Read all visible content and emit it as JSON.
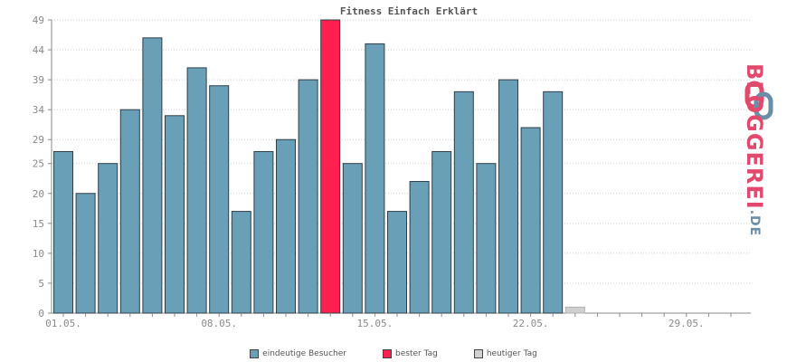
{
  "chart_data": {
    "type": "bar",
    "title": "Fitness Einfach Erklärt",
    "categories": [
      "01.05.",
      "02.05.",
      "03.05.",
      "04.05.",
      "05.05.",
      "06.05.",
      "07.05.",
      "08.05.",
      "09.05.",
      "10.05.",
      "11.05.",
      "12.05.",
      "13.05.",
      "14.05.",
      "15.05.",
      "16.05.",
      "17.05.",
      "18.05.",
      "19.05.",
      "20.05.",
      "21.05.",
      "22.05.",
      "23.05."
    ],
    "values": [
      27,
      20,
      25,
      34,
      46,
      33,
      41,
      38,
      17,
      27,
      29,
      39,
      49,
      25,
      45,
      17,
      22,
      27,
      37,
      25,
      39,
      31,
      37
    ],
    "today_value": 1,
    "best_index": 12,
    "x_tick_labels": [
      "01.05.",
      "08.05.",
      "15.05.",
      "22.05.",
      "29.05."
    ],
    "x_tick_positions": [
      0,
      7,
      14,
      21,
      28
    ],
    "y_ticks": [
      0,
      5,
      10,
      15,
      20,
      25,
      29,
      34,
      39,
      44,
      49
    ],
    "ylim": [
      0,
      49
    ],
    "grid": true,
    "colors": {
      "visitors": "#6a9fb8",
      "best": "#ff2050",
      "today": "#d0d0d0"
    },
    "legend": [
      {
        "label": "eindeutige Besucher",
        "color": "#6a9fb8"
      },
      {
        "label": "bester Tag",
        "color": "#ff2050"
      },
      {
        "label": "heutiger Tag",
        "color": "#d0d0d0"
      }
    ]
  },
  "logo": {
    "text": "BLOGGEREI",
    "suffix": ".DE"
  }
}
